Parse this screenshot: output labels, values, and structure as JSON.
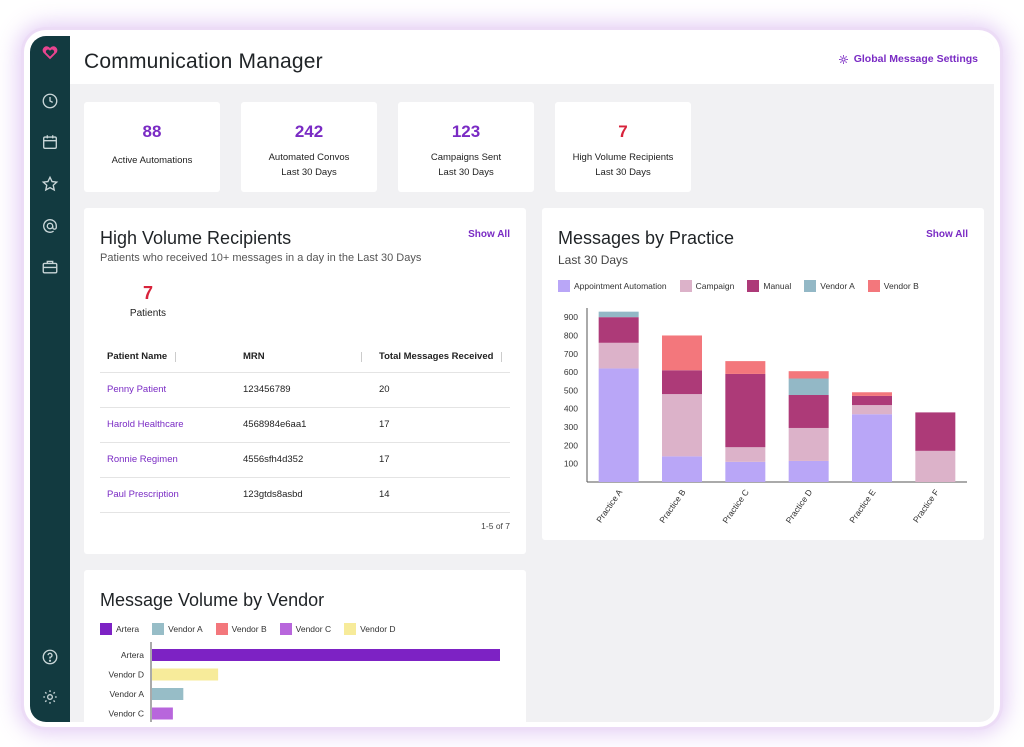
{
  "header": {
    "title": "Communication Manager",
    "settings_label": "Global Message Settings"
  },
  "sidebar": {
    "icons": [
      "heart-logo",
      "clock",
      "calendar",
      "star",
      "at-sign",
      "briefcase",
      "help",
      "settings"
    ]
  },
  "stats": [
    {
      "value": "88",
      "label1": "Active Automations",
      "label2": ""
    },
    {
      "value": "242",
      "label1": "Automated Convos",
      "label2": "Last 30 Days"
    },
    {
      "value": "123",
      "label1": "Campaigns Sent",
      "label2": "Last 30 Days"
    },
    {
      "value": "7",
      "label1": "High Volume Recipients",
      "label2": "Last 30 Days"
    }
  ],
  "high_volume": {
    "title": "High Volume Recipients",
    "subtitle": "Patients who received 10+ messages in a day in the Last 30 Days",
    "show_all": "Show All",
    "count": "7",
    "count_label": "Patients",
    "columns": [
      "Patient Name",
      "MRN",
      "Total Messages Received"
    ],
    "rows": [
      {
        "name": "Penny Patient",
        "mrn": "123456789",
        "total": "20"
      },
      {
        "name": "Harold Healthcare",
        "mrn": "4568984e6aa1",
        "total": "17"
      },
      {
        "name": "Ronnie Regimen",
        "mrn": "4556sfh4d352",
        "total": "17"
      },
      {
        "name": "Paul Prescription",
        "mrn": "123gtds8asbd",
        "total": "14"
      }
    ],
    "pagination": "1-5 of 7"
  },
  "messages_by_practice": {
    "title": "Messages by Practice",
    "subtitle": "Last 30 Days",
    "show_all": "Show All",
    "colors": [
      "#b9a6f7",
      "#dcb2c9",
      "#ad3a78",
      "#93b8c6",
      "#f3777c"
    ]
  },
  "vendor_volume": {
    "title": "Message Volume by Vendor",
    "colors": [
      "#7d22c4",
      "#97bdc7",
      "#f3777c",
      "#b866dc",
      "#f7eb9a"
    ]
  },
  "chart_data": [
    {
      "type": "bar",
      "stacked": true,
      "categories": [
        "Practice A",
        "Practice B",
        "Practice C",
        "Practice D",
        "Practice E",
        "Practice F"
      ],
      "series": [
        {
          "name": "Appointment Automation",
          "values": [
            620,
            140,
            110,
            115,
            370,
            0
          ]
        },
        {
          "name": "Campaign",
          "values": [
            140,
            340,
            80,
            180,
            50,
            170
          ]
        },
        {
          "name": "Manual",
          "values": [
            140,
            130,
            400,
            180,
            50,
            210
          ]
        },
        {
          "name": "Vendor A",
          "values": [
            30,
            0,
            0,
            90,
            0,
            0
          ]
        },
        {
          "name": "Vendor B",
          "values": [
            0,
            190,
            70,
            40,
            20,
            0
          ]
        }
      ],
      "yticks": [
        100,
        200,
        300,
        400,
        500,
        600,
        700,
        800,
        900
      ],
      "ylim": [
        0,
        950
      ],
      "legend": "top"
    },
    {
      "type": "bar",
      "orientation": "horizontal",
      "categories": [
        "Artera",
        "Vendor D",
        "Vendor A",
        "Vendor C"
      ],
      "values": [
        100,
        19,
        9,
        6
      ],
      "legend_entries": [
        "Artera",
        "Vendor A",
        "Vendor B",
        "Vendor C",
        "Vendor D"
      ],
      "bar_series": [
        "Artera",
        "Vendor D",
        "Vendor A",
        "Vendor C"
      ],
      "legend": "top"
    }
  ]
}
